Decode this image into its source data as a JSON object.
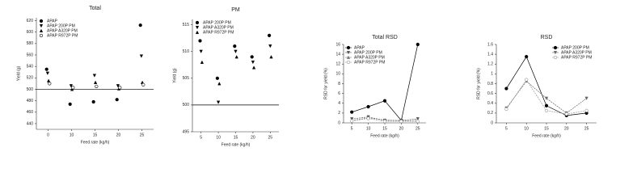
{
  "chart_data": [
    {
      "type": "scatter",
      "title": "Total",
      "x_label": "Feed rate (kg/h)",
      "y_label": "Yield (g)",
      "categories": [
        "0",
        "10",
        "15",
        "20",
        "25"
      ],
      "ylim": [
        430,
        625
      ],
      "yticks": [
        440,
        460,
        480,
        500,
        520,
        540,
        560,
        580,
        600,
        620
      ],
      "hline": 500,
      "legend": "upper left",
      "series": [
        {
          "name": "APAP",
          "color": "#000000",
          "marker": "circle",
          "values": [
            535,
            474,
            478,
            482,
            612
          ]
        },
        {
          "name": "APAP 200P PM",
          "color": "#000000",
          "marker": "triangle-down",
          "values": [
            528,
            506,
            524,
            506,
            558
          ]
        },
        {
          "name": "APAP A320P PM",
          "color": "#000000",
          "marker": "triangle-up",
          "values": [
            515,
            500,
            512,
            501,
            512
          ]
        },
        {
          "name": "APAP R972P PM",
          "color": "#000000",
          "marker": "circle-open",
          "values": [
            510,
            503,
            505,
            503,
            508
          ]
        }
      ]
    },
    {
      "type": "scatter",
      "title": "PM",
      "x_label": "Feed rate (kg/h)",
      "y_label": "Yield (g)",
      "categories": [
        "5",
        "10",
        "15",
        "20",
        "25"
      ],
      "ylim": [
        495,
        516
      ],
      "yticks": [
        495,
        500,
        505,
        510,
        515
      ],
      "hline": 500,
      "legend": "upper left",
      "series": [
        {
          "name": "APAP 200P PM",
          "color": "#000000",
          "marker": "circle",
          "values": [
            512,
            505,
            511,
            509,
            513
          ]
        },
        {
          "name": "APAP A320P PM",
          "color": "#000000",
          "marker": "triangle-down",
          "values": [
            510,
            500.5,
            510,
            508,
            511
          ]
        },
        {
          "name": "APAP R972P PM",
          "color": "#000000",
          "marker": "triangle-up",
          "values": [
            508,
            504,
            509,
            507,
            509
          ]
        }
      ]
    },
    {
      "type": "line",
      "title": "Total RSD",
      "x_label": "Feed rate (kg/h)",
      "y_label": "RSD for yield (%)",
      "categories": [
        "5",
        "10",
        "15",
        "20",
        "25"
      ],
      "ylim": [
        0,
        16
      ],
      "yticks": [
        0,
        2,
        4,
        6,
        8,
        10,
        12,
        14,
        16
      ],
      "legend": "upper left",
      "series": [
        {
          "name": "APAP",
          "color": "#000000",
          "marker": "circle",
          "values": [
            2.2,
            3.3,
            4.5,
            0.5,
            16
          ]
        },
        {
          "name": "APAP 200P PM",
          "color": "#555555",
          "marker": "triangle-down",
          "values": [
            0.8,
            1.2,
            0.5,
            0.5,
            0.8
          ]
        },
        {
          "name": "APAP A320P PM",
          "color": "#777777",
          "marker": "triangle-up",
          "values": [
            0.5,
            1.0,
            0.6,
            0.4,
            0.5
          ]
        },
        {
          "name": "APAP R972P PM",
          "color": "#999999",
          "marker": "circle-open",
          "values": [
            0.4,
            0.9,
            0.3,
            0.3,
            0.3
          ]
        }
      ]
    },
    {
      "type": "line",
      "title": "RSD",
      "x_label": "Feed rate (kg/h)",
      "y_label": "RSD for yield (%)",
      "categories": [
        "5",
        "10",
        "15",
        "20",
        "25"
      ],
      "ylim": [
        0,
        1.6
      ],
      "yticks": [
        0,
        0.2,
        0.4,
        0.6,
        0.8,
        1,
        1.2,
        1.4,
        1.6
      ],
      "legend": "upper right",
      "series": [
        {
          "name": "APAP 200P PM",
          "color": "#000000",
          "marker": "circle",
          "values": [
            0.7,
            1.35,
            0.35,
            0.15,
            0.2
          ]
        },
        {
          "name": "APAP A320P PM",
          "color": "#666666",
          "marker": "triangle-down",
          "values": [
            0.3,
            0.85,
            0.5,
            0.2,
            0.5
          ]
        },
        {
          "name": "APAP R972P PM",
          "color": "#999999",
          "marker": "circle-open",
          "values": [
            0.28,
            0.88,
            0.25,
            0.18,
            0.25
          ]
        }
      ]
    }
  ]
}
